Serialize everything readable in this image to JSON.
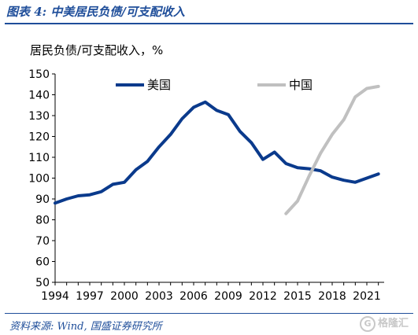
{
  "header": {
    "title": "图表 4:  中美居民负债/可支配收入"
  },
  "footer": {
    "source": "资料来源: Wind, 国盛证券研究所",
    "watermark": "格隆汇"
  },
  "chart_data": {
    "type": "line",
    "title": "",
    "ylabel": "居民负债/可支配收入，%",
    "xlabel": "",
    "ylim": [
      50,
      150
    ],
    "yticks": [
      50,
      60,
      70,
      80,
      90,
      100,
      110,
      120,
      130,
      140,
      150
    ],
    "xlim": [
      1994,
      2022.5
    ],
    "xticks": [
      1994,
      1997,
      2000,
      2003,
      2006,
      2009,
      2012,
      2015,
      2018,
      2021
    ],
    "grid": false,
    "legend": "top",
    "series": [
      {
        "name": "美国",
        "color": "#0a3a8c",
        "x": [
          1994,
          1995,
          1996,
          1997,
          1998,
          1999,
          2000,
          2001,
          2002,
          2003,
          2004,
          2005,
          2006,
          2007,
          2008,
          2009,
          2010,
          2011,
          2012,
          2013,
          2014,
          2015,
          2016,
          2017,
          2018,
          2019,
          2020,
          2021,
          2022
        ],
        "values": [
          88,
          90,
          91.5,
          92,
          93.5,
          97,
          98,
          104,
          108,
          115,
          121,
          128.5,
          134,
          136.5,
          132.5,
          130.5,
          122.5,
          117,
          109,
          112.5,
          107,
          105,
          104.5,
          103.5,
          100.5,
          99,
          98,
          100,
          102
        ]
      },
      {
        "name": "中国",
        "color": "#c0c0c0",
        "x": [
          2014,
          2015,
          2016,
          2017,
          2018,
          2019,
          2020,
          2021,
          2022
        ],
        "values": [
          83,
          89,
          101,
          112,
          121,
          128,
          139,
          143,
          144
        ]
      }
    ]
  }
}
